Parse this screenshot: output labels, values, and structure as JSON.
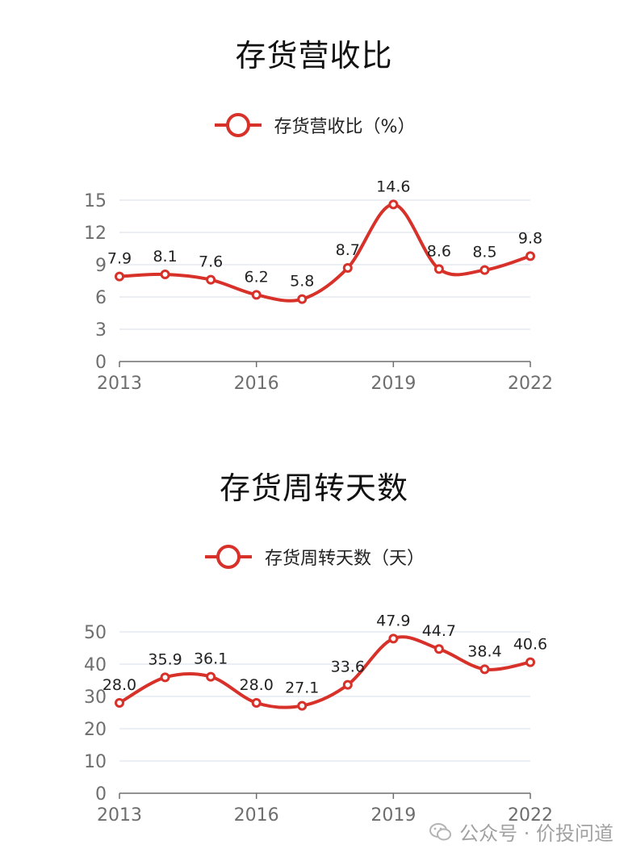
{
  "chart_data": [
    {
      "type": "line",
      "title": "存货营收比",
      "x": [
        "2013",
        "2014",
        "2015",
        "2016",
        "2017",
        "2018",
        "2019",
        "2020",
        "2021",
        "2022"
      ],
      "xtick_labels": [
        "2013",
        "2016",
        "2019",
        "2022"
      ],
      "ytick_labels": [
        "0",
        "3",
        "6",
        "9",
        "12",
        "15"
      ],
      "ylim": [
        0,
        15
      ],
      "grid": true,
      "legend_position": "top-center",
      "smooth": true,
      "series": [
        {
          "name": "存货营收比（%）",
          "values": [
            7.9,
            8.1,
            7.6,
            6.2,
            5.8,
            8.7,
            14.6,
            8.6,
            8.5,
            9.8
          ],
          "labels": [
            "7.9",
            "8.1",
            "7.6",
            "6.2",
            "5.8",
            "8.7",
            "14.6",
            "8.6",
            "8.5",
            "9.8"
          ],
          "color": "#d7312a"
        }
      ]
    },
    {
      "type": "line",
      "title": "存货周转天数",
      "x": [
        "2013",
        "2014",
        "2015",
        "2016",
        "2017",
        "2018",
        "2019",
        "2020",
        "2021",
        "2022"
      ],
      "xtick_labels": [
        "2013",
        "2016",
        "2019",
        "2022"
      ],
      "ytick_labels": [
        "0",
        "10",
        "20",
        "30",
        "40",
        "50"
      ],
      "ylim": [
        0,
        50
      ],
      "grid": true,
      "legend_position": "top-center",
      "smooth": true,
      "series": [
        {
          "name": "存货周转天数（天）",
          "values": [
            28.0,
            35.9,
            36.1,
            28.0,
            27.1,
            33.6,
            47.9,
            44.7,
            38.4,
            40.6
          ],
          "labels": [
            "28.0",
            "35.9",
            "36.1",
            "28.0",
            "27.1",
            "33.6",
            "47.9",
            "44.7",
            "38.4",
            "40.6"
          ],
          "color": "#d7312a"
        }
      ]
    }
  ],
  "watermark": {
    "text": "公众号 · 价投问道",
    "icon": "wechat-icon"
  },
  "colors": {
    "line": "#d7312a",
    "grid": "#dfe3ec",
    "axis": "#6e6e6e",
    "text": "#222222"
  }
}
